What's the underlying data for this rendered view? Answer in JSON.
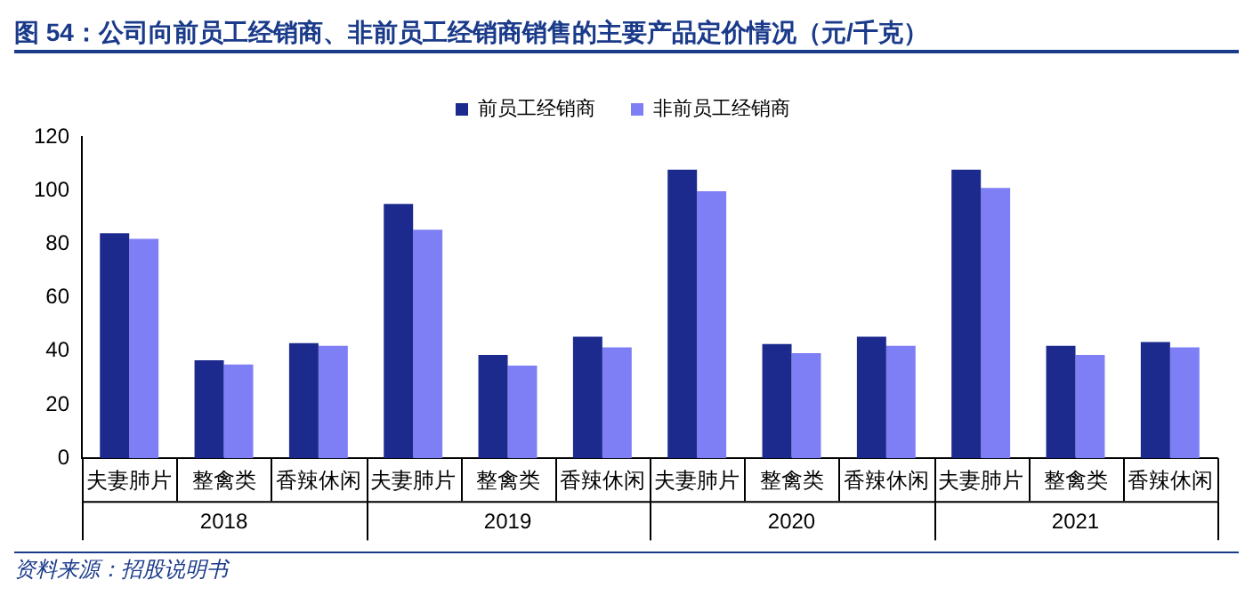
{
  "chart_data": {
    "type": "bar",
    "title": "图 54：公司向前员工经销商、非前员工经销商销售的主要产品定价情况（元/千克）",
    "categories": [
      "夫妻肺片",
      "整禽类",
      "香辣休闲",
      "夫妻肺片",
      "整禽类",
      "香辣休闲",
      "夫妻肺片",
      "整禽类",
      "香辣休闲",
      "夫妻肺片",
      "整禽类",
      "香辣休闲"
    ],
    "series": [
      {
        "name": "前员工经销商",
        "color": "#1c2a8e",
        "values": [
          84,
          36.6,
          43,
          95,
          38.6,
          45.4,
          107.8,
          42.7,
          45.4,
          107.8,
          42,
          43.4
        ]
      },
      {
        "name": "非前员工经销商",
        "color": "#7f7ff5",
        "values": [
          82,
          35,
          42,
          85.4,
          34.6,
          41.4,
          99.7,
          39.3,
          42,
          101,
          38.6,
          41.4
        ]
      }
    ],
    "ylim": [
      0,
      120
    ],
    "yticks": [
      0,
      20,
      40,
      60,
      80,
      100,
      120
    ],
    "grid": false,
    "legend": "top",
    "annotations": [
      "2018",
      "2019",
      "2020",
      "2021",
      "资料来源：招股说明书"
    ]
  }
}
